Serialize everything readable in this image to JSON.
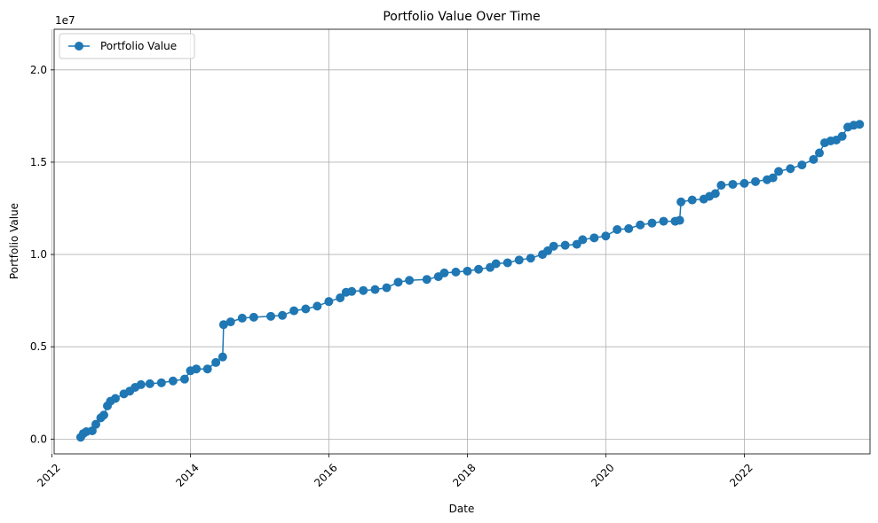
{
  "chart_data": {
    "type": "line",
    "title": "Portfolio Value Over Time",
    "xlabel": "Date",
    "ylabel": "Portfolio Value",
    "y_offset_label": "1e7",
    "grid": true,
    "legend_position": "top-left",
    "marker": "circle",
    "xlim": [
      "2012-01-13",
      "2023-10-26"
    ],
    "ylim": [
      -800000,
      22200000
    ],
    "x_ticks": [
      "2012",
      "2014",
      "2016",
      "2018",
      "2020",
      "2022"
    ],
    "y_ticks": [
      "0.0",
      "0.5",
      "1.0",
      "1.5",
      "2.0"
    ],
    "colors": {
      "series": "#1f77b4",
      "grid": "#b0b0b0"
    },
    "series": [
      {
        "name": "Portfolio Value",
        "points": [
          [
            "2012-06-01",
            100000
          ],
          [
            "2012-06-15",
            300000
          ],
          [
            "2012-07-01",
            400000
          ],
          [
            "2012-08-01",
            450000
          ],
          [
            "2012-08-20",
            800000
          ],
          [
            "2012-09-15",
            1150000
          ],
          [
            "2012-10-01",
            1300000
          ],
          [
            "2012-10-20",
            1800000
          ],
          [
            "2012-11-05",
            2050000
          ],
          [
            "2012-12-01",
            2200000
          ],
          [
            "2013-01-15",
            2450000
          ],
          [
            "2013-02-15",
            2600000
          ],
          [
            "2013-03-15",
            2800000
          ],
          [
            "2013-04-15",
            2950000
          ],
          [
            "2013-06-01",
            3000000
          ],
          [
            "2013-08-01",
            3050000
          ],
          [
            "2013-10-01",
            3150000
          ],
          [
            "2013-12-01",
            3250000
          ],
          [
            "2014-01-01",
            3700000
          ],
          [
            "2014-02-01",
            3800000
          ],
          [
            "2014-04-01",
            3800000
          ],
          [
            "2014-05-15",
            4150000
          ],
          [
            "2014-06-20",
            4450000
          ],
          [
            "2014-06-25",
            6200000
          ],
          [
            "2014-08-01",
            6350000
          ],
          [
            "2014-10-01",
            6550000
          ],
          [
            "2014-12-01",
            6600000
          ],
          [
            "2015-03-01",
            6650000
          ],
          [
            "2015-05-01",
            6700000
          ],
          [
            "2015-07-01",
            6950000
          ],
          [
            "2015-09-01",
            7050000
          ],
          [
            "2015-11-01",
            7200000
          ],
          [
            "2016-01-01",
            7450000
          ],
          [
            "2016-03-01",
            7650000
          ],
          [
            "2016-04-01",
            7950000
          ],
          [
            "2016-05-01",
            8000000
          ],
          [
            "2016-07-01",
            8050000
          ],
          [
            "2016-09-01",
            8100000
          ],
          [
            "2016-11-01",
            8200000
          ],
          [
            "2017-01-01",
            8500000
          ],
          [
            "2017-03-01",
            8600000
          ],
          [
            "2017-06-01",
            8650000
          ],
          [
            "2017-08-01",
            8800000
          ],
          [
            "2017-09-01",
            9000000
          ],
          [
            "2017-11-01",
            9050000
          ],
          [
            "2018-01-01",
            9100000
          ],
          [
            "2018-03-01",
            9200000
          ],
          [
            "2018-05-01",
            9300000
          ],
          [
            "2018-06-01",
            9500000
          ],
          [
            "2018-08-01",
            9550000
          ],
          [
            "2018-10-01",
            9700000
          ],
          [
            "2018-12-01",
            9800000
          ],
          [
            "2019-02-01",
            10000000
          ],
          [
            "2019-03-01",
            10200000
          ],
          [
            "2019-04-01",
            10450000
          ],
          [
            "2019-06-01",
            10500000
          ],
          [
            "2019-08-01",
            10550000
          ],
          [
            "2019-09-01",
            10800000
          ],
          [
            "2019-11-01",
            10900000
          ],
          [
            "2020-01-01",
            11000000
          ],
          [
            "2020-03-01",
            11350000
          ],
          [
            "2020-05-01",
            11400000
          ],
          [
            "2020-07-01",
            11600000
          ],
          [
            "2020-09-01",
            11700000
          ],
          [
            "2020-11-01",
            11800000
          ],
          [
            "2021-01-01",
            11800000
          ],
          [
            "2021-01-25",
            11850000
          ],
          [
            "2021-02-01",
            12850000
          ],
          [
            "2021-04-01",
            12950000
          ],
          [
            "2021-06-01",
            13000000
          ],
          [
            "2021-07-01",
            13150000
          ],
          [
            "2021-08-01",
            13300000
          ],
          [
            "2021-09-01",
            13750000
          ],
          [
            "2021-11-01",
            13800000
          ],
          [
            "2022-01-01",
            13850000
          ],
          [
            "2022-03-01",
            13950000
          ],
          [
            "2022-05-01",
            14050000
          ],
          [
            "2022-06-01",
            14150000
          ],
          [
            "2022-07-01",
            14500000
          ],
          [
            "2022-09-01",
            14650000
          ],
          [
            "2022-11-01",
            14850000
          ],
          [
            "2023-01-01",
            15150000
          ],
          [
            "2023-02-01",
            15500000
          ],
          [
            "2023-03-01",
            16050000
          ],
          [
            "2023-04-01",
            16150000
          ],
          [
            "2023-05-01",
            16200000
          ],
          [
            "2023-06-01",
            16400000
          ],
          [
            "2023-07-01",
            16900000
          ],
          [
            "2023-08-01",
            17000000
          ],
          [
            "2023-09-01",
            17050000
          ]
        ]
      }
    ]
  }
}
